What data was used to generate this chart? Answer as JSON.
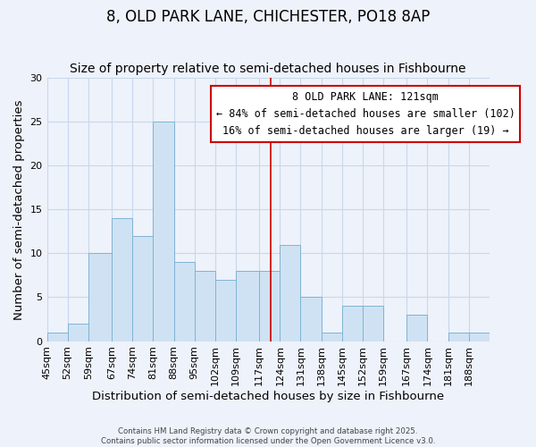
{
  "title": "8, OLD PARK LANE, CHICHESTER, PO18 8AP",
  "subtitle": "Size of property relative to semi-detached houses in Fishbourne",
  "xlabel": "Distribution of semi-detached houses by size in Fishbourne",
  "ylabel": "Number of semi-detached properties",
  "bin_labels": [
    "45sqm",
    "52sqm",
    "59sqm",
    "67sqm",
    "74sqm",
    "81sqm",
    "88sqm",
    "95sqm",
    "102sqm",
    "109sqm",
    "117sqm",
    "124sqm",
    "131sqm",
    "138sqm",
    "145sqm",
    "152sqm",
    "159sqm",
    "167sqm",
    "174sqm",
    "181sqm",
    "188sqm"
  ],
  "bin_edges": [
    45,
    52,
    59,
    67,
    74,
    81,
    88,
    95,
    102,
    109,
    117,
    124,
    131,
    138,
    145,
    152,
    159,
    167,
    174,
    181,
    188,
    195
  ],
  "counts": [
    1,
    2,
    10,
    14,
    12,
    25,
    9,
    8,
    7,
    8,
    8,
    11,
    5,
    1,
    4,
    4,
    0,
    3,
    0,
    1,
    1
  ],
  "bar_color": "#cfe2f3",
  "bar_edge_color": "#7fb4d4",
  "property_line_x": 121,
  "property_line_color": "#cc0000",
  "annotation_title": "8 OLD PARK LANE: 121sqm",
  "annotation_line1": "← 84% of semi-detached houses are smaller (102)",
  "annotation_line2": "16% of semi-detached houses are larger (19) →",
  "annotation_box_color": "#ffffff",
  "annotation_box_edge_color": "#cc0000",
  "ylim": [
    0,
    30
  ],
  "yticks": [
    0,
    5,
    10,
    15,
    20,
    25,
    30
  ],
  "grid_color": "#c8d8ec",
  "background_color": "#eef2fa",
  "footer1": "Contains HM Land Registry data © Crown copyright and database right 2025.",
  "footer2": "Contains public sector information licensed under the Open Government Licence v3.0.",
  "title_fontsize": 12,
  "subtitle_fontsize": 10,
  "axis_label_fontsize": 9.5,
  "tick_fontsize": 8,
  "annotation_fontsize": 8.5
}
